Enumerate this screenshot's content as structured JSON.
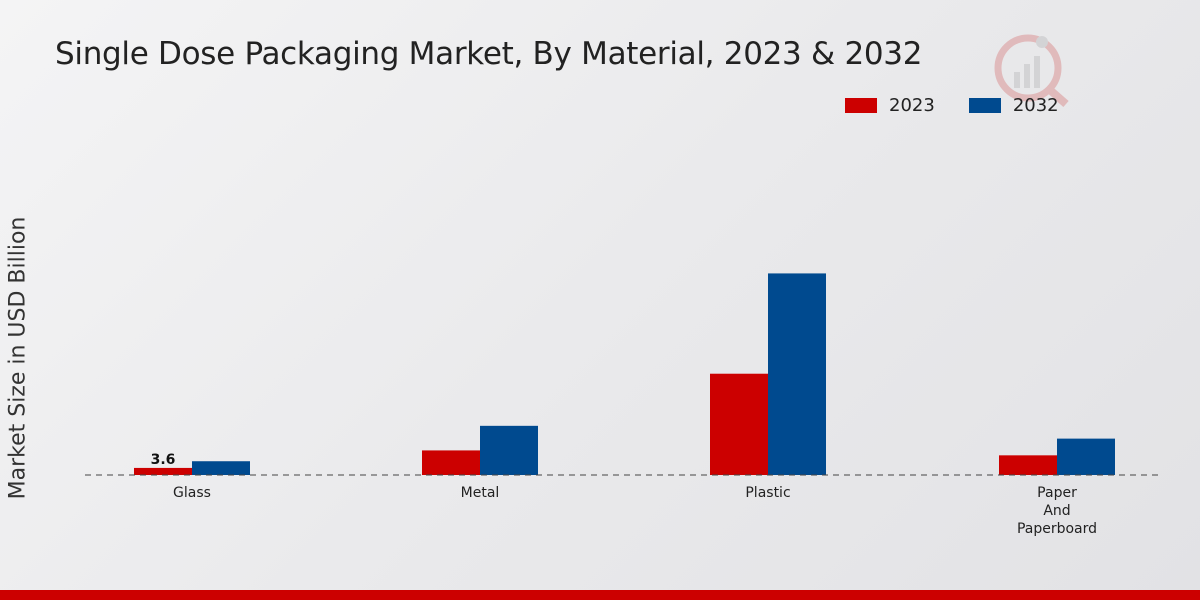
{
  "chart_data": {
    "type": "bar",
    "title": "Single Dose Packaging Market, By Material, 2023 & 2032",
    "xlabel": "",
    "ylabel": "Market Size in USD Billion",
    "categories": [
      "Glass",
      "Metal",
      "Plastic",
      "Paper And Paperboard"
    ],
    "category_lines": [
      [
        "Glass"
      ],
      [
        "Metal"
      ],
      [
        "Plastic"
      ],
      [
        "Paper",
        "And",
        "Paperboard"
      ]
    ],
    "series": [
      {
        "name": "2023",
        "color": "#cc0000",
        "values": [
          3.6,
          12.5,
          51.5,
          10.0
        ]
      },
      {
        "name": "2032",
        "color": "#004a8f",
        "values": [
          7.0,
          25.0,
          102.5,
          18.5
        ]
      }
    ],
    "data_labels": [
      {
        "series": "2023",
        "category": "Glass",
        "text": "3.6"
      }
    ],
    "ylim": [
      0,
      150
    ],
    "grid": false,
    "legend_position": "top-right"
  }
}
